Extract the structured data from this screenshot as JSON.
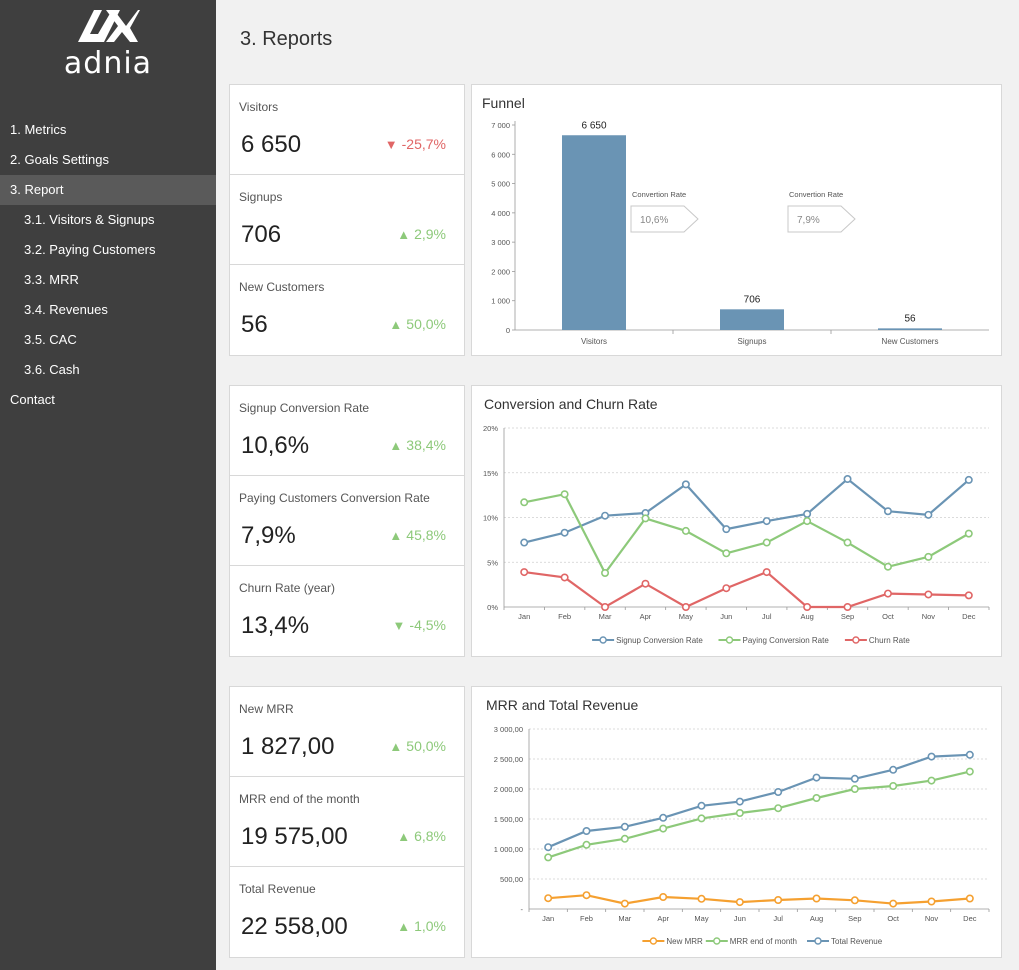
{
  "brand": {
    "name": "adnia"
  },
  "nav": [
    {
      "label": "1. Metrics",
      "sub": false,
      "active": false
    },
    {
      "label": "2. Goals Settings",
      "sub": false,
      "active": false
    },
    {
      "label": "3. Report",
      "sub": false,
      "active": true
    },
    {
      "label": "3.1. Visitors & Signups",
      "sub": true,
      "active": false
    },
    {
      "label": "3.2. Paying Customers",
      "sub": true,
      "active": false
    },
    {
      "label": "3.3. MRR",
      "sub": true,
      "active": false
    },
    {
      "label": "3.4. Revenues",
      "sub": true,
      "active": false
    },
    {
      "label": "3.5. CAC",
      "sub": true,
      "active": false
    },
    {
      "label": "3.6. Cash",
      "sub": true,
      "active": false
    },
    {
      "label": "Contact",
      "sub": false,
      "active": false
    }
  ],
  "page": {
    "title": "3. Reports"
  },
  "kpi_groups": [
    [
      {
        "label": "Visitors",
        "value": "6 650",
        "delta": "-25,7%",
        "direction": "down"
      },
      {
        "label": "Signups",
        "value": "706",
        "delta": "2,9%",
        "direction": "up"
      },
      {
        "label": "New Customers",
        "value": "56",
        "delta": "50,0%",
        "direction": "up"
      }
    ],
    [
      {
        "label": "Signup Conversion Rate",
        "value": "10,6%",
        "delta": "38,4%",
        "direction": "up"
      },
      {
        "label": "Paying Customers Conversion Rate",
        "value": "7,9%",
        "delta": "45,8%",
        "direction": "up"
      },
      {
        "label": "Churn Rate (year)",
        "value": "13,4%",
        "delta": "-4,5%",
        "direction": "up"
      }
    ],
    [
      {
        "label": "New MRR",
        "value": "1 827,00",
        "delta": "50,0%",
        "direction": "up"
      },
      {
        "label": "MRR end of the month",
        "value": "19 575,00",
        "delta": "6,8%",
        "direction": "up"
      },
      {
        "label": "Total Revenue",
        "value": "22 558,00",
        "delta": "1,0%",
        "direction": "up"
      }
    ]
  ],
  "colors": {
    "up": "#8dc97a",
    "down": "#e06666",
    "bar": "#6a94b4",
    "signup": "#6a94b4",
    "paying": "#8dc97a",
    "churn": "#e06666",
    "new_mrr": "#f5a030",
    "mrr_end": "#8dc97a",
    "total_rev": "#6a94b4"
  },
  "chart_data": [
    {
      "type": "bar",
      "title": "Funnel",
      "categories": [
        "Visitors",
        "Signups",
        "New Customers"
      ],
      "values": [
        6650,
        706,
        56
      ],
      "value_labels": [
        "6 650",
        "706",
        "56"
      ],
      "ylim": [
        0,
        7000
      ],
      "yticks": [
        "0",
        "1 000",
        "2 000",
        "3 000",
        "4 000",
        "5 000",
        "6 000",
        "7 000"
      ],
      "annotations": [
        {
          "label": "Convertion Rate",
          "value": "10,6%"
        },
        {
          "label": "Convertion Rate",
          "value": "7,9%"
        }
      ]
    },
    {
      "type": "line",
      "title": "Conversion and Churn Rate",
      "categories": [
        "Jan",
        "Feb",
        "Mar",
        "Apr",
        "May",
        "Jun",
        "Jul",
        "Aug",
        "Sep",
        "Oct",
        "Nov",
        "Dec"
      ],
      "ylim": [
        0,
        20
      ],
      "yticks": [
        "0%",
        "5%",
        "10%",
        "15%",
        "20%"
      ],
      "series": [
        {
          "name": "Signup Conversion Rate",
          "values": [
            7.2,
            8.3,
            10.2,
            10.5,
            13.7,
            8.7,
            9.6,
            10.4,
            14.3,
            10.7,
            10.3,
            14.2
          ]
        },
        {
          "name": "Paying Conversion Rate",
          "values": [
            11.7,
            12.6,
            3.8,
            9.9,
            8.5,
            6.0,
            7.2,
            9.6,
            7.2,
            4.5,
            5.6,
            8.2
          ]
        },
        {
          "name": "Churn Rate",
          "values": [
            3.9,
            3.3,
            0.0,
            2.6,
            0.0,
            2.1,
            3.9,
            0.0,
            0.0,
            1.5,
            1.4,
            1.3
          ]
        }
      ]
    },
    {
      "type": "line",
      "title": "MRR and Total Revenue",
      "categories": [
        "Jan",
        "Feb",
        "Mar",
        "Apr",
        "May",
        "Jun",
        "Jul",
        "Aug",
        "Sep",
        "Oct",
        "Nov",
        "Dec"
      ],
      "ylim": [
        0,
        3000
      ],
      "yticks": [
        "-",
        "500,00",
        "1 000,00",
        "1 500,00",
        "2 000,00",
        "2 500,00",
        "3 000,00"
      ],
      "series": [
        {
          "name": "New MRR",
          "values": [
            180,
            230,
            90,
            200,
            170,
            115,
            150,
            175,
            145,
            90,
            125,
            175
          ]
        },
        {
          "name": "MRR end of month",
          "values": [
            860,
            1070,
            1170,
            1340,
            1510,
            1600,
            1680,
            1850,
            2000,
            2050,
            2140,
            2290
          ]
        },
        {
          "name": "Total Revenue",
          "values": [
            1030,
            1300,
            1370,
            1520,
            1720,
            1790,
            1950,
            2190,
            2170,
            2320,
            2540,
            2570
          ]
        }
      ]
    }
  ]
}
